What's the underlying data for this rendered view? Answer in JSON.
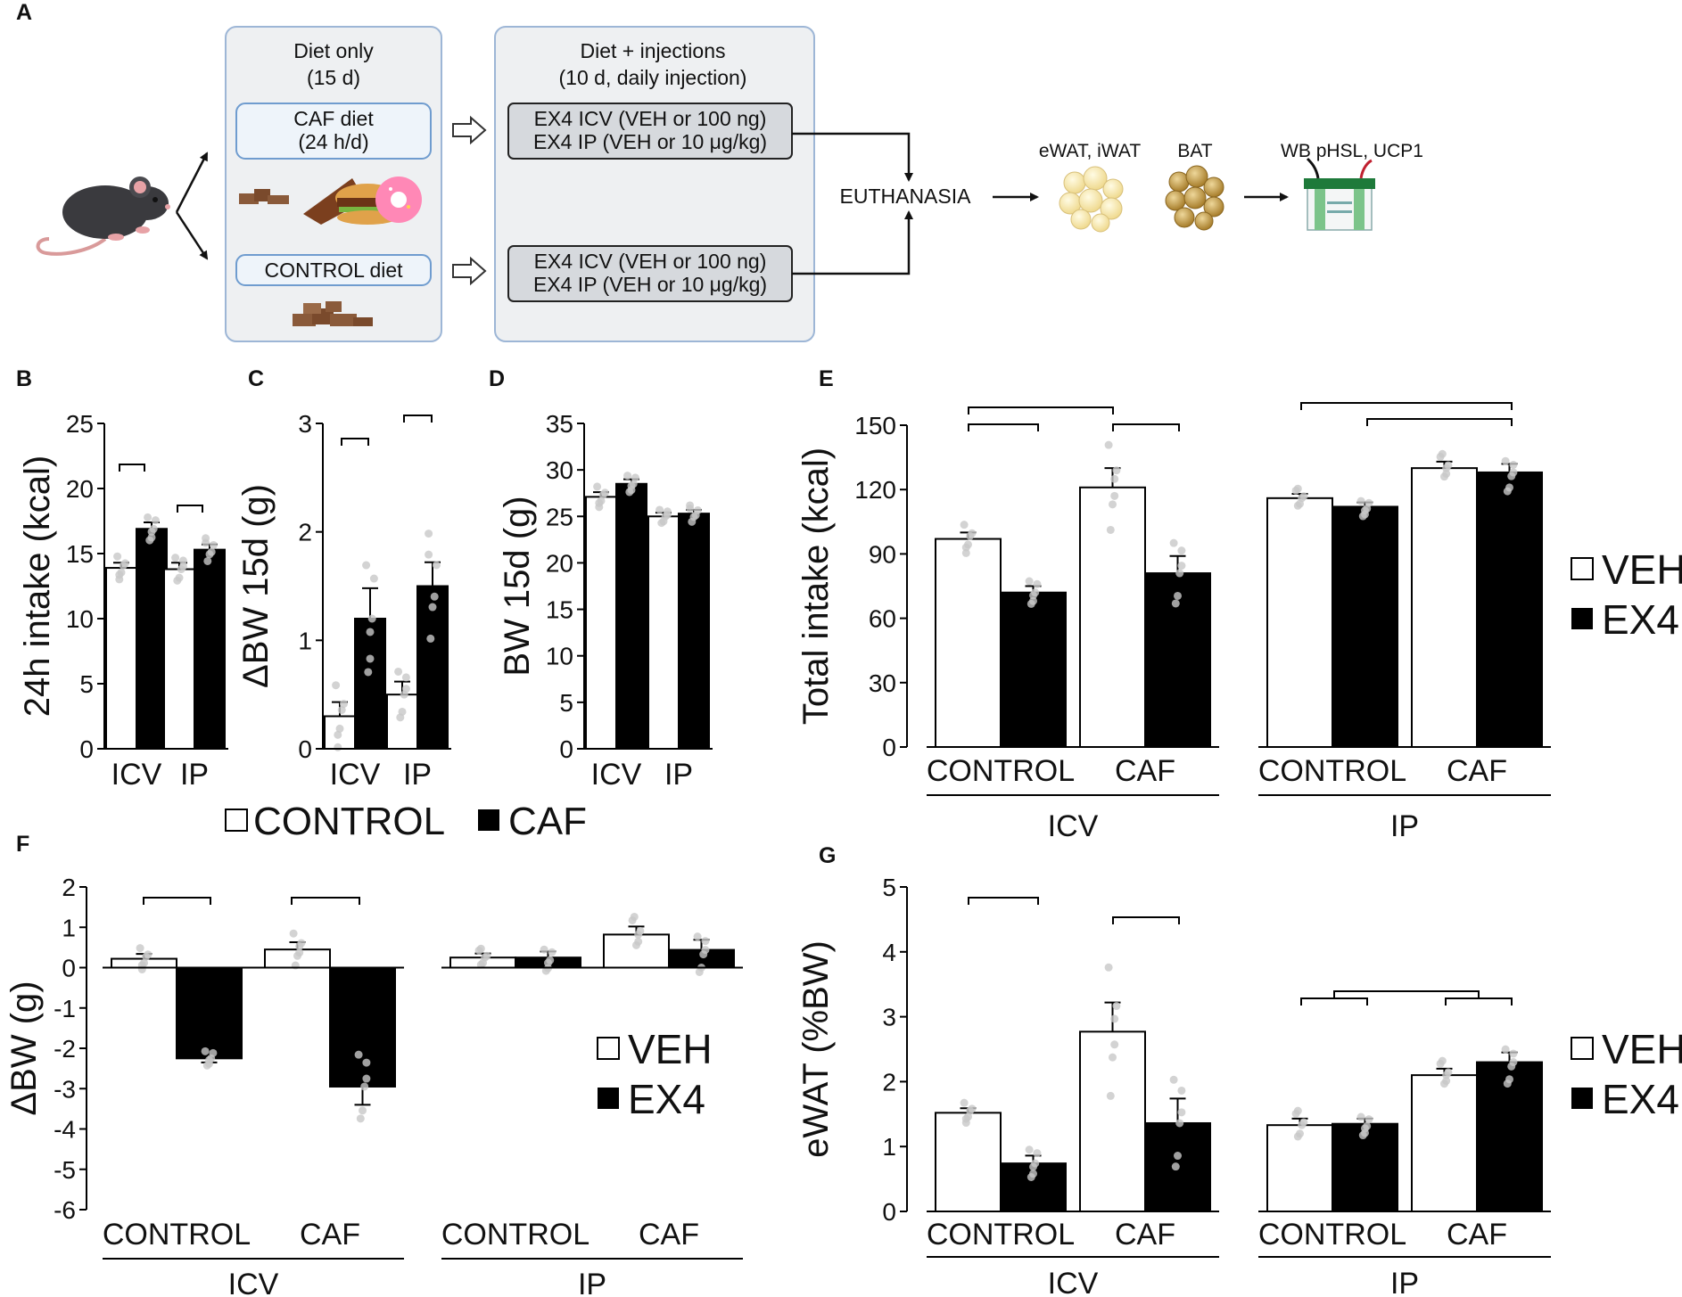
{
  "panel_labels": {
    "A": "A",
    "B": "B",
    "C": "C",
    "D": "D",
    "E": "E",
    "F": "F",
    "G": "G"
  },
  "schematic": {
    "diet_only_title": "Diet only",
    "diet_only_duration": "(15 d)",
    "caf_diet": "CAF diet",
    "caf_diet_hours": "(24 h/d)",
    "control_diet": "CONTROL diet",
    "injections_title": "Diet + injections",
    "injections_duration": "(10 d, daily injection)",
    "top_box_line1": "EX4 ICV (VEH or 100 ng)",
    "top_box_line2": "EX4 IP (VEH or 10 μg/kg)",
    "bottom_box_line1": "EX4 ICV (VEH or 100 ng)",
    "bottom_box_line2": "EX4 IP (VEH or 10 μg/kg)",
    "euthanasia": "EUTHANASIA",
    "tissue_wat": "eWAT, iWAT",
    "tissue_bat": "BAT",
    "western_blot": "WB pHSL, UCP1",
    "icons": [
      "mouse-icon",
      "caf-food-icon",
      "chow-icon",
      "white-adipose-icon",
      "brown-adipose-icon",
      "western-blot-icon"
    ],
    "colors": {
      "panel_fill": "#eef0f2",
      "panel_border": "#9db6d6",
      "diet_box_fill": "#eef4fa",
      "diet_box_border": "#6f9ccf",
      "injection_box_fill": "#d6d9dd",
      "injection_box_border": "#222222"
    }
  },
  "legend_bd": {
    "control": "CONTROL",
    "caf": "CAF"
  },
  "legend_efg": {
    "veh": "VEH",
    "ex4": "EX4"
  },
  "colors": {
    "open_bar": "#ffffff",
    "filled_bar": "#000000",
    "dots": "#c8c8c8",
    "axis": "#000000"
  },
  "chart_data": [
    {
      "panel": "B",
      "type": "bar",
      "title": "",
      "ylabel": "24h intake (kcal)",
      "xlabel": "",
      "ylim": [
        0,
        25
      ],
      "yticks": [
        0,
        5,
        10,
        15,
        20,
        25
      ],
      "categories": [
        "ICV",
        "IP"
      ],
      "series": [
        {
          "name": "CONTROL",
          "values": [
            13.9,
            13.8
          ],
          "sem": [
            0.4,
            0.5
          ]
        },
        {
          "name": "CAF",
          "values": [
            16.9,
            15.3
          ],
          "sem": [
            0.5,
            0.4
          ]
        }
      ],
      "significance": [
        [
          "ICV",
          "CONTROL-CAF"
        ],
        [
          "IP",
          "CONTROL-CAF"
        ]
      ]
    },
    {
      "panel": "C",
      "type": "bar",
      "title": "",
      "ylabel": "ΔBW 15d (g)",
      "xlabel": "",
      "ylim": [
        0,
        3
      ],
      "yticks": [
        0,
        1,
        2,
        3
      ],
      "categories": [
        "ICV",
        "IP"
      ],
      "series": [
        {
          "name": "CONTROL",
          "values": [
            0.3,
            0.5
          ],
          "sem": [
            0.13,
            0.12
          ]
        },
        {
          "name": "CAF",
          "values": [
            1.2,
            1.5
          ],
          "sem": [
            0.28,
            0.22
          ]
        }
      ],
      "significance": [
        [
          "ICV",
          "CONTROL-CAF"
        ],
        [
          "IP",
          "CONTROL-CAF"
        ]
      ]
    },
    {
      "panel": "D",
      "type": "bar",
      "title": "",
      "ylabel": "BW 15d (g)",
      "xlabel": "",
      "ylim": [
        0,
        35
      ],
      "yticks": [
        0,
        5,
        10,
        15,
        20,
        25,
        30,
        35
      ],
      "categories": [
        "ICV",
        "IP"
      ],
      "series": [
        {
          "name": "CONTROL",
          "values": [
            27.1,
            25.0
          ],
          "sem": [
            0.5,
            0.4
          ]
        },
        {
          "name": "CAF",
          "values": [
            28.5,
            25.3
          ],
          "sem": [
            0.5,
            0.4
          ]
        }
      ],
      "significance": []
    },
    {
      "panel": "E",
      "type": "bar",
      "title": "",
      "ylabel": "Total intake (kcal)",
      "xlabel": "",
      "ylim": [
        0,
        150
      ],
      "yticks": [
        0,
        30,
        60,
        90,
        120,
        150
      ],
      "groups": [
        "ICV",
        "IP"
      ],
      "categories": [
        "CONTROL",
        "CAF"
      ],
      "series": [
        {
          "group": "ICV",
          "name": "VEH",
          "values": [
            97,
            121
          ],
          "sem": [
            3,
            9
          ]
        },
        {
          "group": "ICV",
          "name": "EX4",
          "values": [
            72,
            81
          ],
          "sem": [
            3,
            8
          ]
        },
        {
          "group": "IP",
          "name": "VEH",
          "values": [
            116,
            130
          ],
          "sem": [
            2,
            3
          ]
        },
        {
          "group": "IP",
          "name": "EX4",
          "values": [
            112,
            128
          ],
          "sem": [
            2,
            4
          ]
        }
      ],
      "significance": [
        "ICV CONTROL VEH vs EX4",
        "ICV CAF VEH vs EX4",
        "ICV CONTROL VEH vs CAF VEH",
        "IP CONTROL VEH vs CAF EX4",
        "IP CONTROL EX4 vs CAF EX4"
      ]
    },
    {
      "panel": "F",
      "type": "bar",
      "title": "",
      "ylabel": "ΔBW (g)",
      "xlabel": "",
      "ylim": [
        -6,
        2
      ],
      "yticks": [
        -6,
        -5,
        -4,
        -3,
        -2,
        -1,
        0,
        1,
        2
      ],
      "groups": [
        "ICV",
        "IP"
      ],
      "categories": [
        "CONTROL",
        "CAF"
      ],
      "series": [
        {
          "group": "ICV",
          "name": "VEH",
          "values": [
            0.22,
            0.45
          ],
          "sem": [
            0.12,
            0.18
          ]
        },
        {
          "group": "ICV",
          "name": "EX4",
          "values": [
            -2.25,
            -2.95
          ],
          "sem": [
            0.1,
            0.45
          ]
        },
        {
          "group": "IP",
          "name": "VEH",
          "values": [
            0.25,
            0.82
          ],
          "sem": [
            0.1,
            0.2
          ]
        },
        {
          "group": "IP",
          "name": "EX4",
          "values": [
            0.25,
            0.44
          ],
          "sem": [
            0.15,
            0.25
          ]
        }
      ],
      "significance": [
        "ICV CONTROL VEH vs EX4",
        "ICV CAF VEH vs EX4"
      ]
    },
    {
      "panel": "G",
      "type": "bar",
      "title": "",
      "ylabel": "eWAT (%BW)",
      "xlabel": "",
      "ylim": [
        0,
        5
      ],
      "yticks": [
        0,
        1,
        2,
        3,
        4,
        5
      ],
      "groups": [
        "ICV",
        "IP"
      ],
      "categories": [
        "CONTROL",
        "CAF"
      ],
      "series": [
        {
          "group": "ICV",
          "name": "VEH",
          "values": [
            1.52,
            2.77
          ],
          "sem": [
            0.07,
            0.45
          ]
        },
        {
          "group": "ICV",
          "name": "EX4",
          "values": [
            0.74,
            1.36
          ],
          "sem": [
            0.12,
            0.38
          ]
        },
        {
          "group": "IP",
          "name": "VEH",
          "values": [
            1.33,
            2.1
          ],
          "sem": [
            0.1,
            0.1
          ]
        },
        {
          "group": "IP",
          "name": "EX4",
          "values": [
            1.35,
            2.3
          ],
          "sem": [
            0.08,
            0.15
          ]
        }
      ],
      "significance": [
        "ICV CONTROL VEH vs EX4",
        "ICV CAF VEH vs EX4",
        "IP CONTROL vs CAF (pooled)"
      ]
    }
  ]
}
